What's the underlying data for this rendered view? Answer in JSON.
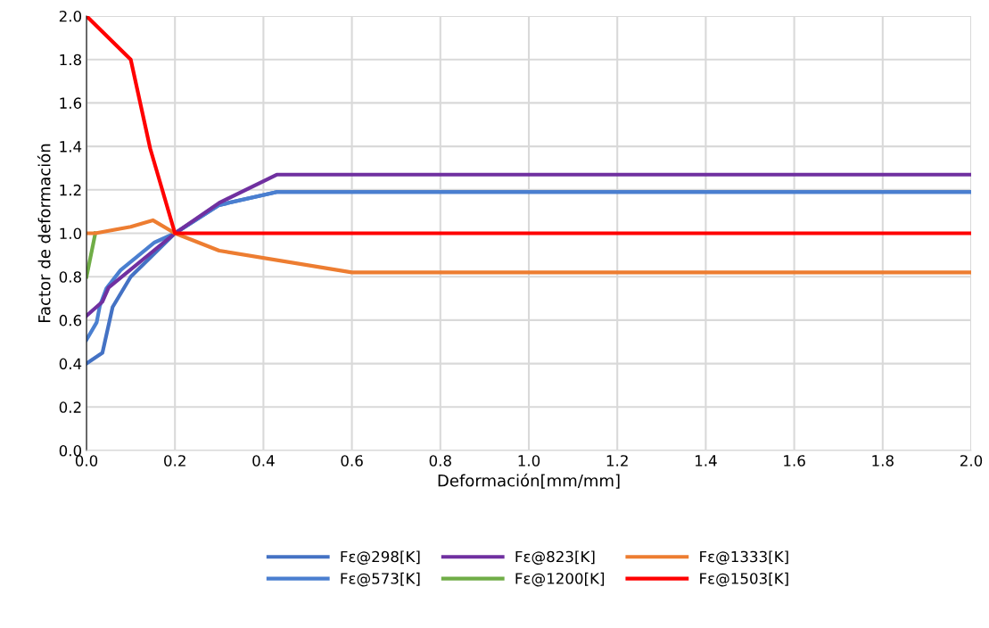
{
  "chart_data": {
    "type": "line",
    "xlabel": "Deformación[mm/mm]",
    "ylabel": "Factor de deformación",
    "xlim": [
      0,
      2.0
    ],
    "ylim": [
      0,
      2.0
    ],
    "xticks": [
      {
        "value": 0,
        "label": "0.0"
      },
      0.2,
      0.4,
      0.6,
      0.8,
      {
        "value": 1,
        "label": "1.0"
      },
      1.2,
      1.4,
      1.6,
      1.8,
      {
        "value": 2,
        "label": "2.0"
      }
    ],
    "yticks": [
      {
        "value": 0,
        "label": "0.0"
      },
      0.2,
      0.4,
      0.6,
      0.8,
      {
        "value": 1,
        "label": "1.0"
      },
      1.2,
      1.4,
      1.6,
      1.8,
      {
        "value": 2,
        "label": "2.0"
      }
    ],
    "grid": true,
    "legend": "bottom",
    "marker": "none",
    "line_style": "solid",
    "series": [
      {
        "name": "Fε@298[K]",
        "color": "#4472c4",
        "x": [
          0,
          0.036,
          0.059,
          0.1,
          0.2,
          0.3,
          0.43,
          2.0
        ],
        "values": [
          0.4,
          0.45,
          0.66,
          0.8,
          1.0,
          1.13,
          1.19,
          1.19
        ]
      },
      {
        "name": "Fε@573[K]",
        "color": "#4a7fd0",
        "x": [
          0,
          0.023,
          0.03,
          0.045,
          0.077,
          0.154,
          0.2,
          0.3,
          0.43,
          2.0
        ],
        "values": [
          0.51,
          0.59,
          0.665,
          0.746,
          0.83,
          0.958,
          1.0,
          1.13,
          1.19,
          1.19
        ]
      },
      {
        "name": "Fε@823[K]",
        "color": "#7030a0",
        "x": [
          0,
          0.036,
          0.05,
          0.2,
          0.3,
          0.43,
          2.0
        ],
        "values": [
          0.62,
          0.685,
          0.75,
          1.0,
          1.14,
          1.27,
          1.27
        ]
      },
      {
        "name": "Fε@1200[K]",
        "color": "#70ad47",
        "x": [
          0,
          0.02
        ],
        "values": [
          0.8,
          1.0
        ]
      },
      {
        "name": "Fε@1333[K]",
        "color": "#ed7d31",
        "x": [
          0,
          0.02,
          0.1,
          0.15,
          0.2,
          0.3,
          0.6,
          2.0
        ],
        "values": [
          1.0,
          1.0,
          1.03,
          1.06,
          1.0,
          0.92,
          0.82,
          0.82
        ]
      },
      {
        "name": "Fε@1503[K]",
        "color": "#ff0000",
        "x": [
          0,
          0.1,
          0.144,
          0.2,
          2.0
        ],
        "values": [
          2.0,
          1.8,
          1.39,
          1.0,
          1.0
        ]
      }
    ]
  }
}
